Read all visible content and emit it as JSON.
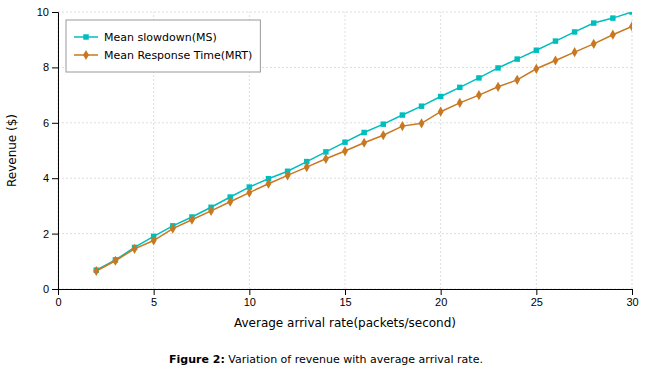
{
  "chart_data": {
    "type": "line",
    "xlabel": "Average arrival rate(packets/second)",
    "ylabel": "Revenue ($)",
    "annotations": [
      "Figure 2:",
      " Variation of revenue with average arrival rate."
    ],
    "x": [
      2,
      3,
      4,
      5,
      6,
      7,
      8,
      9,
      10,
      11,
      12,
      13,
      14,
      15,
      16,
      17,
      18,
      19,
      20,
      21,
      22,
      23,
      24,
      25,
      26,
      27,
      28,
      29,
      30
    ],
    "series": [
      {
        "name": "Mean slowdown(MS)",
        "color": "#00BEBE",
        "marker": "square",
        "values": [
          0.68,
          1.05,
          1.5,
          1.9,
          2.28,
          2.6,
          2.95,
          3.32,
          3.68,
          3.98,
          4.25,
          4.6,
          4.95,
          5.3,
          5.65,
          5.95,
          6.28,
          6.6,
          6.95,
          7.28,
          7.62,
          7.98,
          8.3,
          8.62,
          8.95,
          9.28,
          9.6,
          9.78,
          10.0
        ]
      },
      {
        "name": "Mean Response Time(MRT)",
        "color": "#C87820",
        "marker": "diamond",
        "values": [
          0.65,
          1.02,
          1.45,
          1.75,
          2.18,
          2.5,
          2.82,
          3.15,
          3.48,
          3.8,
          4.1,
          4.4,
          4.7,
          4.98,
          5.28,
          5.55,
          5.88,
          5.98,
          6.4,
          6.72,
          7.0,
          7.3,
          7.55,
          7.95,
          8.25,
          8.55,
          8.85,
          9.18,
          9.48
        ]
      }
    ],
    "xlim": [
      0,
      30
    ],
    "ylim": [
      0,
      10
    ],
    "xticks": [
      0,
      5,
      10,
      15,
      20,
      25,
      30
    ],
    "yticks": [
      0,
      2,
      4,
      6,
      8,
      10
    ],
    "grid": true,
    "legend": "upper left"
  }
}
